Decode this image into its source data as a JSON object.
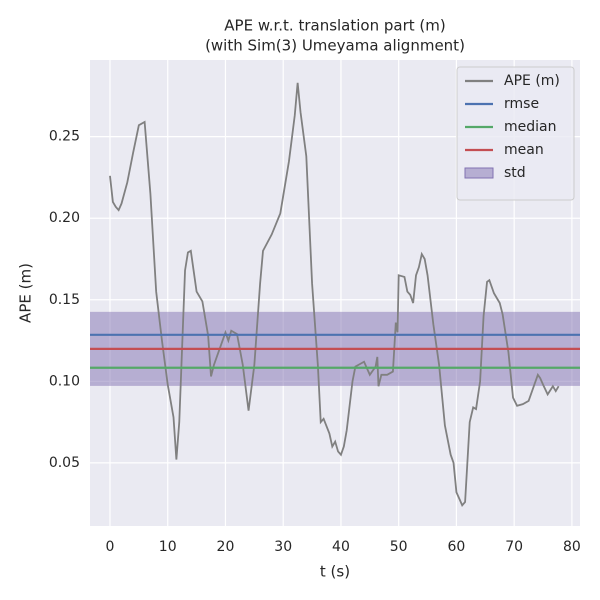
{
  "chart_data": {
    "type": "line",
    "title": "APE w.r.t. translation part (m)",
    "subtitle": "(with Sim(3) Umeyama alignment)",
    "xlabel": "t (s)",
    "ylabel": "APE (m)",
    "xlim": [
      -3.46,
      81.4
    ],
    "ylim": [
      0.0113,
      0.297
    ],
    "xticks": [
      0,
      10,
      20,
      30,
      40,
      50,
      60,
      70,
      80
    ],
    "yticks": [
      0.05,
      {
        "value": 0.1,
        "label": "0.10"
      },
      0.15,
      {
        "value": 0.2,
        "label": "0.20"
      },
      0.25
    ],
    "grid": true,
    "legend": "upper right",
    "series": [
      {
        "name": "APE (m)",
        "color": "#808080",
        "x": [
          0,
          0.5,
          1,
          1.5,
          2,
          3,
          4,
          5,
          6,
          7,
          8,
          9,
          10,
          11,
          11.5,
          12,
          13,
          13.5,
          14,
          15,
          16,
          17,
          17.5,
          18,
          19,
          20,
          20.5,
          21,
          22,
          23,
          24,
          25,
          26,
          26.5,
          28,
          29.5,
          31,
          32,
          32.5,
          33,
          34,
          35,
          36,
          36.5,
          37,
          38,
          38.5,
          39,
          39.5,
          40,
          40.5,
          41,
          42,
          42.5,
          43.5,
          44,
          45,
          46,
          46.3,
          46.5,
          47,
          48,
          49,
          49.5,
          49.8,
          50,
          51,
          51.5,
          52,
          52.5,
          53,
          53.5,
          54,
          54.5,
          55,
          56,
          57,
          58,
          59,
          59.5,
          60,
          60.5,
          61,
          61.5,
          62.3,
          62.9,
          63.4,
          64.1,
          64.7,
          65.3,
          65.7,
          66.5,
          67.5,
          68,
          69,
          69.8,
          70.5,
          71.5,
          72.5,
          73.5,
          74.1,
          74.5,
          75,
          75.8,
          76.7,
          77.2,
          77.7
        ],
        "values": [
          0.226,
          0.21,
          0.207,
          0.205,
          0.209,
          0.222,
          0.24,
          0.257,
          0.259,
          0.215,
          0.155,
          0.125,
          0.098,
          0.078,
          0.052,
          0.075,
          0.168,
          0.179,
          0.18,
          0.155,
          0.149,
          0.128,
          0.103,
          0.11,
          0.12,
          0.13,
          0.125,
          0.131,
          0.129,
          0.11,
          0.082,
          0.11,
          0.16,
          0.18,
          0.19,
          0.203,
          0.235,
          0.263,
          0.283,
          0.265,
          0.238,
          0.16,
          0.11,
          0.075,
          0.077,
          0.068,
          0.06,
          0.063,
          0.057,
          0.055,
          0.06,
          0.07,
          0.1,
          0.109,
          0.111,
          0.112,
          0.104,
          0.109,
          0.115,
          0.097,
          0.104,
          0.104,
          0.106,
          0.136,
          0.13,
          0.165,
          0.164,
          0.155,
          0.153,
          0.148,
          0.165,
          0.17,
          0.178,
          0.175,
          0.165,
          0.135,
          0.11,
          0.073,
          0.055,
          0.05,
          0.032,
          0.028,
          0.024,
          0.026,
          0.075,
          0.084,
          0.083,
          0.1,
          0.14,
          0.161,
          0.162,
          0.154,
          0.148,
          0.141,
          0.118,
          0.09,
          0.085,
          0.086,
          0.088,
          0.098,
          0.104,
          0.102,
          0.098,
          0.092,
          0.097,
          0.094,
          0.097
        ]
      }
    ],
    "stats": [
      {
        "name": "rmse",
        "color": "#4c72b0",
        "value": 0.1285
      },
      {
        "name": "median",
        "color": "#55a868",
        "value": 0.1083
      },
      {
        "name": "mean",
        "color": "#c44e52",
        "value": 0.1199
      }
    ],
    "std": {
      "name": "std",
      "color": "#8172b2",
      "value": 0.0227
    }
  }
}
